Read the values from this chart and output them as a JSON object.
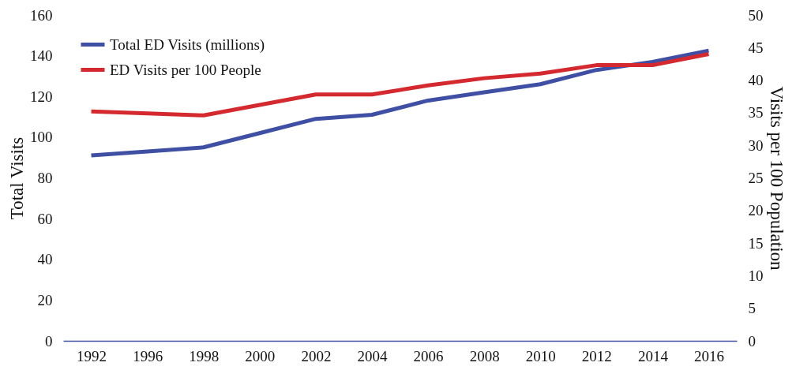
{
  "chart_data": {
    "type": "line",
    "categories": [
      "1992",
      "1996",
      "1998",
      "2000",
      "2002",
      "2004",
      "2006",
      "2008",
      "2010",
      "2012",
      "2014",
      "2016"
    ],
    "series": [
      {
        "name": "Total ED Visits (millions)",
        "color": "#3f4fa3",
        "values": [
          91,
          93,
          95,
          102,
          109,
          111,
          118,
          122,
          126,
          133,
          137,
          142.5
        ]
      },
      {
        "name": "ED Visits per 100 People",
        "color": "#d42a2f",
        "axis": "y2",
        "values": [
          35.2,
          34.9,
          34.6,
          36.2,
          37.8,
          37.8,
          39.2,
          40.3,
          41.0,
          42.3,
          42.3,
          44.0
        ]
      }
    ],
    "ylabel": "Total Visits",
    "y2label": "Visits per 100 Population",
    "ylim": [
      0,
      160
    ],
    "yticks": [
      0,
      20,
      40,
      60,
      80,
      100,
      120,
      140,
      160
    ],
    "y2lim": [
      0,
      50
    ],
    "y2ticks": [
      0,
      5,
      10,
      15,
      20,
      25,
      30,
      35,
      40,
      45,
      50
    ],
    "grid": false,
    "legend": "top left",
    "marker": "none",
    "line_style": "solid"
  }
}
